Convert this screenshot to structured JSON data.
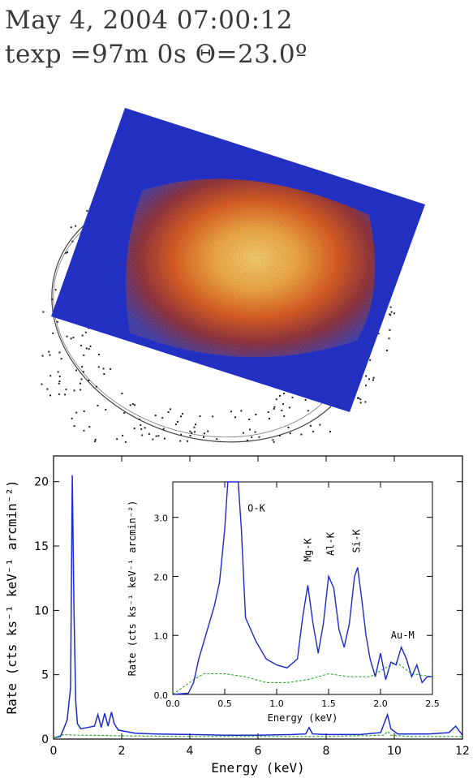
{
  "header": {
    "timestamp": "May 4, 2004 07:00:12",
    "exposure": "texp =97m 0s  Θ=23.0º"
  },
  "image": {
    "colors": {
      "background_blue": "#2a3cc8",
      "hot_red": "#c83a14",
      "core_yellow": "#f2c060",
      "speckle_black": "#222222"
    }
  },
  "chart_data": [
    {
      "type": "line",
      "xlabel": "Energy (keV)",
      "ylabel": "Rate (cts ks⁻¹ keV⁻¹ arcmin⁻²)",
      "xlim": [
        0,
        12
      ],
      "ylim": [
        0,
        22
      ],
      "xticks": [
        "0",
        "2",
        "4",
        "6",
        "8",
        "10",
        "12"
      ],
      "yticks": [
        "0",
        "5",
        "10",
        "15",
        "20"
      ],
      "grid": false,
      "series": [
        {
          "color": "#1a2ad0",
          "style": "solid",
          "x": [
            0,
            0.2,
            0.3,
            0.4,
            0.5,
            0.55,
            0.6,
            0.65,
            0.7,
            0.8,
            1.0,
            1.2,
            1.3,
            1.4,
            1.5,
            1.6,
            1.7,
            1.78,
            1.9,
            2.1,
            2.4,
            3,
            4,
            5,
            6,
            7,
            7.4,
            7.5,
            7.6,
            8,
            9,
            9.6,
            9.7,
            9.8,
            9.9,
            10.1,
            11,
            11.6,
            11.8,
            12
          ],
          "y": [
            0.1,
            0.2,
            0.8,
            1.5,
            4,
            20.5,
            10,
            3,
            1.2,
            0.8,
            0.9,
            1.0,
            1.9,
            0.9,
            2.0,
            1.0,
            2.1,
            1.2,
            0.7,
            0.6,
            0.45,
            0.4,
            0.35,
            0.3,
            0.3,
            0.35,
            0.4,
            0.9,
            0.4,
            0.35,
            0.35,
            0.5,
            1.2,
            1.9,
            0.8,
            0.4,
            0.4,
            0.5,
            1.0,
            0.3
          ]
        },
        {
          "color": "#2ea82e",
          "style": "dashed",
          "x": [
            0,
            0.3,
            0.6,
            1,
            2,
            4,
            6,
            8,
            9.7,
            9.8,
            9.9,
            10.5,
            12
          ],
          "y": [
            0.1,
            0.35,
            0.3,
            0.3,
            0.25,
            0.2,
            0.2,
            0.2,
            0.3,
            0.6,
            0.3,
            0.2,
            0.2
          ]
        }
      ]
    },
    {
      "type": "line",
      "xlabel": "Energy (keV)",
      "ylabel": "Rate (cts ks⁻¹ keV⁻¹ arcmin⁻²)",
      "xlim": [
        0,
        2.5
      ],
      "ylim": [
        0,
        3.6
      ],
      "xticks": [
        "0.0",
        "0.5",
        "1.0",
        "1.5",
        "2.0",
        "2.5"
      ],
      "yticks": [
        "0.0",
        "1.0",
        "2.0",
        "3.0"
      ],
      "annotations": [
        {
          "text": "O-K",
          "x": 0.72,
          "y": 3.1
        },
        {
          "text": "Mg-K",
          "x": 1.3,
          "y": 2.25
        },
        {
          "text": "Al-K",
          "x": 1.52,
          "y": 2.35
        },
        {
          "text": "Si-K",
          "x": 1.77,
          "y": 2.4
        },
        {
          "text": "Au-M",
          "x": 2.1,
          "y": 0.95
        }
      ],
      "series": [
        {
          "color": "#1a2ad0",
          "style": "solid",
          "x": [
            0,
            0.15,
            0.2,
            0.25,
            0.3,
            0.35,
            0.4,
            0.45,
            0.5,
            0.53,
            0.55,
            0.6,
            0.63,
            0.66,
            0.7,
            0.75,
            0.8,
            0.9,
            1.0,
            1.1,
            1.2,
            1.25,
            1.3,
            1.35,
            1.4,
            1.45,
            1.5,
            1.55,
            1.6,
            1.65,
            1.7,
            1.75,
            1.78,
            1.82,
            1.86,
            1.9,
            1.95,
            2.0,
            2.05,
            2.1,
            2.15,
            2.2,
            2.25,
            2.3,
            2.35,
            2.4,
            2.45,
            2.5
          ],
          "y": [
            0.0,
            0.02,
            0.2,
            0.6,
            0.9,
            1.2,
            1.5,
            1.9,
            2.8,
            3.6,
            3.6,
            3.6,
            3.6,
            2.8,
            1.3,
            1.1,
            0.9,
            0.6,
            0.5,
            0.45,
            0.6,
            1.3,
            1.85,
            1.2,
            0.7,
            1.2,
            2.0,
            1.8,
            1.1,
            0.8,
            1.2,
            2.0,
            2.15,
            1.6,
            1.0,
            0.6,
            0.3,
            0.7,
            0.25,
            0.55,
            0.5,
            0.8,
            0.6,
            0.3,
            0.5,
            0.2,
            0.3,
            0.3
          ]
        },
        {
          "color": "#2ea82e",
          "style": "dashed",
          "x": [
            0,
            0.2,
            0.3,
            0.5,
            0.7,
            0.9,
            1.1,
            1.3,
            1.5,
            1.7,
            1.9,
            2.1,
            2.15,
            2.3,
            2.5
          ],
          "y": [
            0.0,
            0.25,
            0.35,
            0.35,
            0.3,
            0.2,
            0.2,
            0.25,
            0.35,
            0.3,
            0.3,
            0.5,
            0.55,
            0.35,
            0.3
          ]
        }
      ]
    }
  ]
}
